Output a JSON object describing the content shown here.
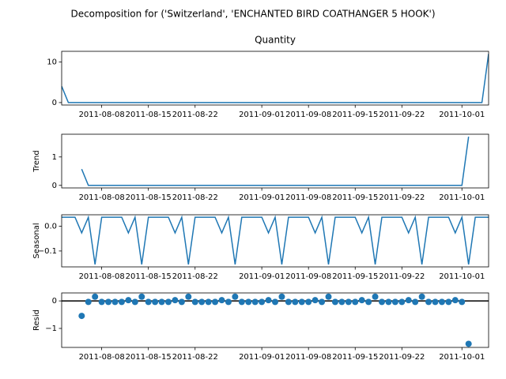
{
  "title": "Decomposition for ('Switzerland', 'ENCHANTED BIRD COATHANGER 5 HOOK')",
  "chart_data": [
    {
      "type": "line",
      "title": "Quantity",
      "x": [
        "2011-08-02",
        "2011-08-03",
        "2011-08-04",
        "2011-08-05",
        "2011-08-06",
        "2011-08-07",
        "2011-08-08",
        "2011-08-09",
        "2011-08-10",
        "2011-08-11",
        "2011-08-12",
        "2011-08-13",
        "2011-08-14",
        "2011-08-15",
        "2011-08-16",
        "2011-08-17",
        "2011-08-18",
        "2011-08-19",
        "2011-08-20",
        "2011-08-21",
        "2011-08-22",
        "2011-08-23",
        "2011-08-24",
        "2011-08-25",
        "2011-08-26",
        "2011-08-27",
        "2011-08-28",
        "2011-08-29",
        "2011-08-30",
        "2011-08-31",
        "2011-09-01",
        "2011-09-02",
        "2011-09-03",
        "2011-09-04",
        "2011-09-05",
        "2011-09-06",
        "2011-09-07",
        "2011-09-08",
        "2011-09-09",
        "2011-09-10",
        "2011-09-11",
        "2011-09-12",
        "2011-09-13",
        "2011-09-14",
        "2011-09-15",
        "2011-09-16",
        "2011-09-17",
        "2011-09-18",
        "2011-09-19",
        "2011-09-20",
        "2011-09-21",
        "2011-09-22",
        "2011-09-23",
        "2011-09-24",
        "2011-09-25",
        "2011-09-26",
        "2011-09-27",
        "2011-09-28",
        "2011-09-29",
        "2011-09-30",
        "2011-10-01",
        "2011-10-02",
        "2011-10-03",
        "2011-10-04",
        "2011-10-05"
      ],
      "series": [
        {
          "color": "#1f77b4",
          "values": [
            4,
            0,
            0,
            0,
            0,
            0,
            0,
            0,
            0,
            0,
            0,
            0,
            0,
            0,
            0,
            0,
            0,
            0,
            0,
            0,
            0,
            0,
            0,
            0,
            0,
            0,
            0,
            0,
            0,
            0,
            0,
            0,
            0,
            0,
            0,
            0,
            0,
            0,
            0,
            0,
            0,
            0,
            0,
            0,
            0,
            0,
            0,
            0,
            0,
            0,
            0,
            0,
            0,
            0,
            0,
            0,
            0,
            0,
            0,
            0,
            0,
            0,
            0,
            0,
            12
          ]
        }
      ],
      "xlim": [
        "2011-08-02",
        "2011-10-05"
      ],
      "xticks": [
        "2011-08-08",
        "2011-08-15",
        "2011-08-22",
        "2011-09-01",
        "2011-09-08",
        "2011-09-15",
        "2011-09-22",
        "2011-10-01"
      ],
      "ylim": [
        -0.6,
        12.6
      ],
      "yticks": [
        0,
        10
      ]
    },
    {
      "type": "line",
      "ylabel": "Trend",
      "x": [
        "2011-08-02",
        "2011-08-03",
        "2011-08-04",
        "2011-08-05",
        "2011-08-06",
        "2011-08-07",
        "2011-08-08",
        "2011-08-09",
        "2011-08-10",
        "2011-08-11",
        "2011-08-12",
        "2011-08-13",
        "2011-08-14",
        "2011-08-15",
        "2011-08-16",
        "2011-08-17",
        "2011-08-18",
        "2011-08-19",
        "2011-08-20",
        "2011-08-21",
        "2011-08-22",
        "2011-08-23",
        "2011-08-24",
        "2011-08-25",
        "2011-08-26",
        "2011-08-27",
        "2011-08-28",
        "2011-08-29",
        "2011-08-30",
        "2011-08-31",
        "2011-09-01",
        "2011-09-02",
        "2011-09-03",
        "2011-09-04",
        "2011-09-05",
        "2011-09-06",
        "2011-09-07",
        "2011-09-08",
        "2011-09-09",
        "2011-09-10",
        "2011-09-11",
        "2011-09-12",
        "2011-09-13",
        "2011-09-14",
        "2011-09-15",
        "2011-09-16",
        "2011-09-17",
        "2011-09-18",
        "2011-09-19",
        "2011-09-20",
        "2011-09-21",
        "2011-09-22",
        "2011-09-23",
        "2011-09-24",
        "2011-09-25",
        "2011-09-26",
        "2011-09-27",
        "2011-09-28",
        "2011-09-29",
        "2011-09-30",
        "2011-10-01",
        "2011-10-02",
        "2011-10-03",
        "2011-10-04",
        "2011-10-05"
      ],
      "series": [
        {
          "color": "#1f77b4",
          "values": [
            null,
            null,
            null,
            0.571,
            0,
            0,
            0,
            0,
            0,
            0,
            0,
            0,
            0,
            0,
            0,
            0,
            0,
            0,
            0,
            0,
            0,
            0,
            0,
            0,
            0,
            0,
            0,
            0,
            0,
            0,
            0,
            0,
            0,
            0,
            0,
            0,
            0,
            0,
            0,
            0,
            0,
            0,
            0,
            0,
            0,
            0,
            0,
            0,
            0,
            0,
            0,
            0,
            0,
            0,
            0,
            0,
            0,
            0,
            0,
            0,
            0,
            1.714,
            null,
            null,
            null
          ]
        }
      ],
      "xlim": [
        "2011-08-02",
        "2011-10-05"
      ],
      "xticks": [
        "2011-08-08",
        "2011-08-15",
        "2011-08-22",
        "2011-09-01",
        "2011-09-08",
        "2011-09-15",
        "2011-09-22",
        "2011-10-01"
      ],
      "ylim": [
        -0.09,
        1.8
      ],
      "yticks": [
        0,
        1
      ]
    },
    {
      "type": "line",
      "ylabel": "Seasonal",
      "x": [
        "2011-08-02",
        "2011-08-03",
        "2011-08-04",
        "2011-08-05",
        "2011-08-06",
        "2011-08-07",
        "2011-08-08",
        "2011-08-09",
        "2011-08-10",
        "2011-08-11",
        "2011-08-12",
        "2011-08-13",
        "2011-08-14",
        "2011-08-15",
        "2011-08-16",
        "2011-08-17",
        "2011-08-18",
        "2011-08-19",
        "2011-08-20",
        "2011-08-21",
        "2011-08-22",
        "2011-08-23",
        "2011-08-24",
        "2011-08-25",
        "2011-08-26",
        "2011-08-27",
        "2011-08-28",
        "2011-08-29",
        "2011-08-30",
        "2011-08-31",
        "2011-09-01",
        "2011-09-02",
        "2011-09-03",
        "2011-09-04",
        "2011-09-05",
        "2011-09-06",
        "2011-09-07",
        "2011-09-08",
        "2011-09-09",
        "2011-09-10",
        "2011-09-11",
        "2011-09-12",
        "2011-09-13",
        "2011-09-14",
        "2011-09-15",
        "2011-09-16",
        "2011-09-17",
        "2011-09-18",
        "2011-09-19",
        "2011-09-20",
        "2011-09-21",
        "2011-09-22",
        "2011-09-23",
        "2011-09-24",
        "2011-09-25",
        "2011-09-26",
        "2011-09-27",
        "2011-09-28",
        "2011-09-29",
        "2011-09-30",
        "2011-10-01",
        "2011-10-02",
        "2011-10-03",
        "2011-10-04",
        "2011-10-05"
      ],
      "series": [
        {
          "color": "#1f77b4",
          "values": [
            0.036,
            0.036,
            0.036,
            -0.027,
            0.036,
            -0.154,
            0.036,
            0.036,
            0.036,
            0.036,
            -0.027,
            0.036,
            -0.154,
            0.036,
            0.036,
            0.036,
            0.036,
            -0.027,
            0.036,
            -0.154,
            0.036,
            0.036,
            0.036,
            0.036,
            -0.027,
            0.036,
            -0.154,
            0.036,
            0.036,
            0.036,
            0.036,
            -0.027,
            0.036,
            -0.154,
            0.036,
            0.036,
            0.036,
            0.036,
            -0.027,
            0.036,
            -0.154,
            0.036,
            0.036,
            0.036,
            0.036,
            -0.027,
            0.036,
            -0.154,
            0.036,
            0.036,
            0.036,
            0.036,
            -0.027,
            0.036,
            -0.154,
            0.036,
            0.036,
            0.036,
            0.036,
            -0.027,
            0.036,
            -0.154,
            0.036,
            0.036,
            0.036
          ]
        }
      ],
      "xlim": [
        "2011-08-02",
        "2011-10-05"
      ],
      "xticks": [
        "2011-08-08",
        "2011-08-15",
        "2011-08-22",
        "2011-09-01",
        "2011-09-08",
        "2011-09-15",
        "2011-09-22",
        "2011-10-01"
      ],
      "ylim": [
        -0.164,
        0.046
      ],
      "yticks": [
        {
          "value": 0,
          "label": "0.0"
        },
        {
          "value": -0.1,
          "label": "−0.1"
        }
      ]
    },
    {
      "type": "scatter",
      "ylabel": "Resid",
      "zero_line": true,
      "x": [
        "2011-08-02",
        "2011-08-03",
        "2011-08-04",
        "2011-08-05",
        "2011-08-06",
        "2011-08-07",
        "2011-08-08",
        "2011-08-09",
        "2011-08-10",
        "2011-08-11",
        "2011-08-12",
        "2011-08-13",
        "2011-08-14",
        "2011-08-15",
        "2011-08-16",
        "2011-08-17",
        "2011-08-18",
        "2011-08-19",
        "2011-08-20",
        "2011-08-21",
        "2011-08-22",
        "2011-08-23",
        "2011-08-24",
        "2011-08-25",
        "2011-08-26",
        "2011-08-27",
        "2011-08-28",
        "2011-08-29",
        "2011-08-30",
        "2011-08-31",
        "2011-09-01",
        "2011-09-02",
        "2011-09-03",
        "2011-09-04",
        "2011-09-05",
        "2011-09-06",
        "2011-09-07",
        "2011-09-08",
        "2011-09-09",
        "2011-09-10",
        "2011-09-11",
        "2011-09-12",
        "2011-09-13",
        "2011-09-14",
        "2011-09-15",
        "2011-09-16",
        "2011-09-17",
        "2011-09-18",
        "2011-09-19",
        "2011-09-20",
        "2011-09-21",
        "2011-09-22",
        "2011-09-23",
        "2011-09-24",
        "2011-09-25",
        "2011-09-26",
        "2011-09-27",
        "2011-09-28",
        "2011-09-29",
        "2011-09-30",
        "2011-10-01",
        "2011-10-02",
        "2011-10-03",
        "2011-10-04",
        "2011-10-05"
      ],
      "series": [
        {
          "color": "#1f77b4",
          "values": [
            null,
            null,
            null,
            -0.544,
            -0.036,
            0.154,
            -0.036,
            -0.036,
            -0.036,
            -0.036,
            0.027,
            -0.036,
            0.154,
            -0.036,
            -0.036,
            -0.036,
            -0.036,
            0.027,
            -0.036,
            0.154,
            -0.036,
            -0.036,
            -0.036,
            -0.036,
            0.027,
            -0.036,
            0.154,
            -0.036,
            -0.036,
            -0.036,
            -0.036,
            0.027,
            -0.036,
            0.154,
            -0.036,
            -0.036,
            -0.036,
            -0.036,
            0.027,
            -0.036,
            0.154,
            -0.036,
            -0.036,
            -0.036,
            -0.036,
            0.027,
            -0.036,
            0.154,
            -0.036,
            -0.036,
            -0.036,
            -0.036,
            0.027,
            -0.036,
            0.154,
            -0.036,
            -0.036,
            -0.036,
            -0.036,
            0.027,
            -0.036,
            -1.56,
            null,
            null,
            null
          ]
        }
      ],
      "xlim": [
        "2011-08-02",
        "2011-10-05"
      ],
      "xticks": [
        "2011-08-08",
        "2011-08-15",
        "2011-08-22",
        "2011-09-01",
        "2011-09-08",
        "2011-09-15",
        "2011-09-22",
        "2011-10-01"
      ],
      "ylim": [
        -1.69,
        0.29
      ],
      "yticks": [
        {
          "value": -1,
          "label": "−1"
        },
        0
      ]
    }
  ]
}
